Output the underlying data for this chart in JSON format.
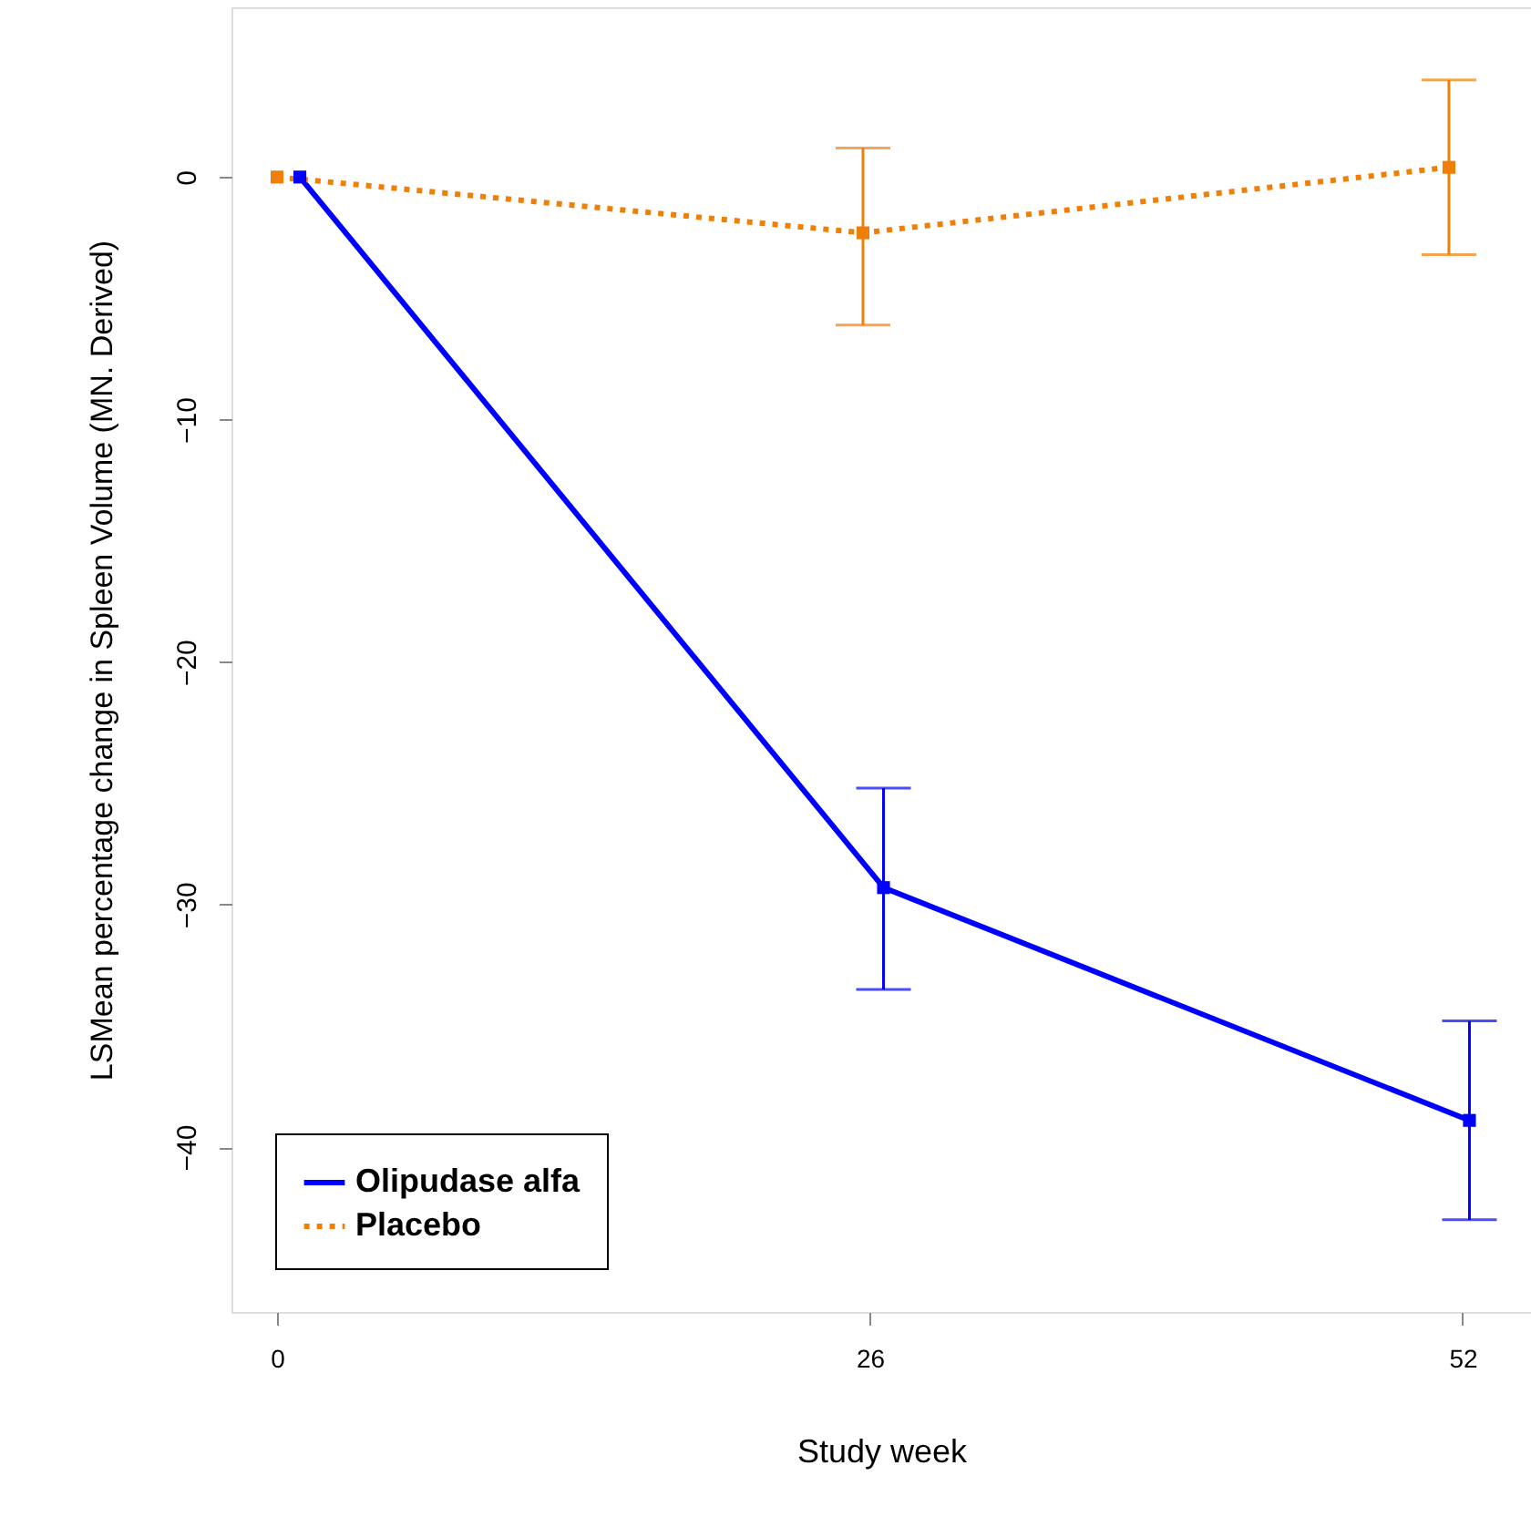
{
  "chart_data": {
    "type": "line",
    "xlabel": "Study week",
    "ylabel": "LSMean percentage change in Spleen Volume (MN. Derived)",
    "xlim": [
      -2,
      55
    ],
    "ylim": [
      -46.8,
      7
    ],
    "xticks": [
      0,
      26,
      52
    ],
    "yticks": [
      0,
      -10,
      -20,
      -30,
      -40
    ],
    "grid": false,
    "legend": "bottom left",
    "marker": "square",
    "series": [
      {
        "name": "Olipudase alfa",
        "color": "#0000ff",
        "line_style": "solid",
        "x": [
          1,
          26.6,
          52.3
        ],
        "values": [
          0,
          -29.3,
          -38.9
        ],
        "errors": [
          null,
          [
            -33.5,
            -25.2
          ],
          [
            -43.0,
            -34.8
          ]
        ]
      },
      {
        "name": "Placebo",
        "color": "#f07f09",
        "line_style": "dotted",
        "x": [
          0,
          25.7,
          51.4
        ],
        "values": [
          0,
          -2.3,
          0.4
        ],
        "errors": [
          null,
          [
            -6.1,
            1.2
          ],
          [
            -3.2,
            4.0
          ]
        ]
      }
    ]
  }
}
